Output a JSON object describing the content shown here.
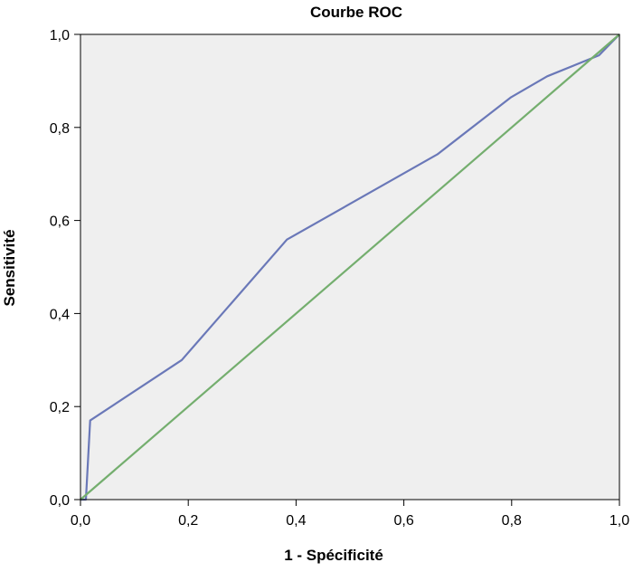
{
  "chart_data": {
    "type": "line",
    "title": "Courbe ROC",
    "xlabel": "1 - Spécificité",
    "ylabel": "Sensitivité",
    "xlim": [
      0,
      1
    ],
    "ylim": [
      0,
      1
    ],
    "xticks": [
      "0,0",
      "0,2",
      "0,4",
      "0,6",
      "0,8",
      "1,0"
    ],
    "yticks": [
      "0,0",
      "0,2",
      "0,4",
      "0,6",
      "0,8",
      "1,0"
    ],
    "grid": false,
    "plot_background": "#efefef",
    "series": [
      {
        "color": "#6a78b8",
        "x": [
          0.0,
          0.01,
          0.018,
          0.188,
          0.383,
          0.662,
          0.799,
          0.866,
          0.962,
          1.0
        ],
        "y": [
          0.0,
          0.0,
          0.17,
          0.3,
          0.559,
          0.742,
          0.865,
          0.91,
          0.955,
          1.0
        ]
      },
      {
        "color": "#74ae6e",
        "x": [
          0.0,
          1.0
        ],
        "y": [
          0.0,
          1.0
        ]
      }
    ]
  }
}
